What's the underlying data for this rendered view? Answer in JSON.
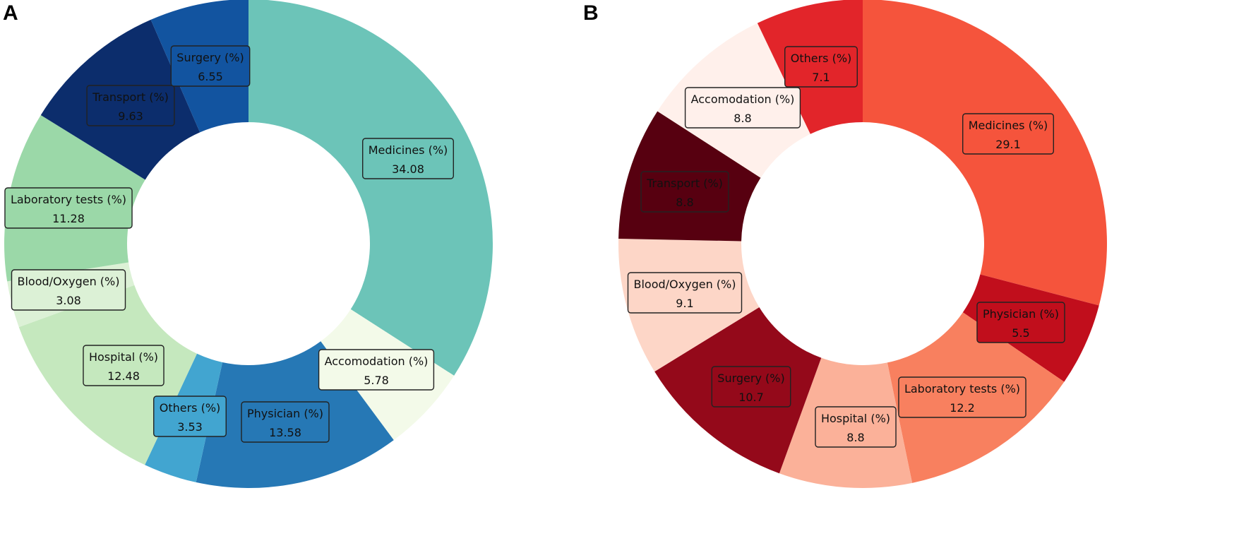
{
  "chart_data": [
    {
      "type": "pie",
      "panel": "A",
      "labels": [
        "Medicines (%)",
        "Accomodation (%)",
        "Physician (%)",
        "Others (%)",
        "Hospital (%)",
        "Blood/Oxygen (%)",
        "Laboratory tests (%)",
        "Transport (%)",
        "Surgery (%)"
      ],
      "values": [
        34.08,
        5.78,
        13.58,
        3.53,
        12.48,
        3.08,
        11.28,
        9.63,
        6.55
      ],
      "value_labels": [
        "34.08",
        "5.78",
        "13.58",
        "3.53",
        "12.48",
        "3.08",
        "11.28",
        "9.63",
        "6.55"
      ],
      "colors": [
        "#6cc4b8",
        "#f3fae9",
        "#2678b5",
        "#42a5d0",
        "#c5e8be",
        "#dcf1d6",
        "#9bd8a8",
        "#0c2d6c",
        "#1254a0"
      ],
      "donut": true,
      "start_angle_deg": 0,
      "direction": "clockwise"
    },
    {
      "type": "pie",
      "panel": "B",
      "labels": [
        "Medicines (%)",
        "Physician (%)",
        "Laboratory tests (%)",
        "Hospital (%)",
        "Surgery (%)",
        "Blood/Oxygen (%)",
        "Transport (%)",
        "Accomodation (%)",
        "Others (%)"
      ],
      "values": [
        29.1,
        5.5,
        12.2,
        8.8,
        10.7,
        9.1,
        8.8,
        8.8,
        7.1
      ],
      "value_labels": [
        "29.1",
        "5.5",
        "12.2",
        "8.8",
        "10.7",
        "9.1",
        "8.8",
        "8.8",
        "7.1"
      ],
      "colors": [
        "#f5543c",
        "#c10e1c",
        "#f8805f",
        "#fbb199",
        "#94091a",
        "#fdd6c7",
        "#570010",
        "#fff0eb",
        "#e2252a"
      ],
      "donut": true,
      "start_angle_deg": 0,
      "direction": "clockwise"
    }
  ]
}
